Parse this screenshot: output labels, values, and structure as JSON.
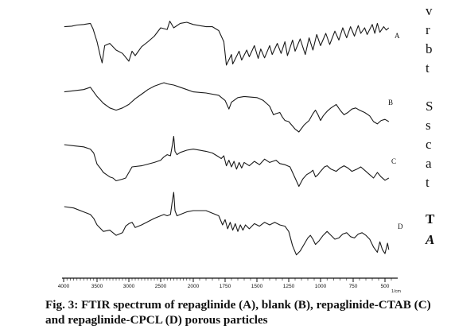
{
  "chart_data": {
    "type": "line",
    "title": "",
    "xlabel": "1/cm",
    "ylabel": "",
    "xlim": [
      4000,
      450
    ],
    "x_ticks": [
      4000,
      3500,
      3000,
      2500,
      2000,
      1750,
      1500,
      1250,
      1000,
      750,
      500
    ],
    "grid": false,
    "legend": "none",
    "series": [
      {
        "name": "A",
        "points": [
          [
            3990,
            0.28
          ],
          [
            3880,
            0.27
          ],
          [
            3800,
            0.25
          ],
          [
            3700,
            0.24
          ],
          [
            3600,
            0.22
          ],
          [
            3560,
            0.32
          ],
          [
            3500,
            0.55
          ],
          [
            3450,
            0.8
          ],
          [
            3420,
            0.93
          ],
          [
            3380,
            0.62
          ],
          [
            3300,
            0.58
          ],
          [
            3200,
            0.7
          ],
          [
            3100,
            0.76
          ],
          [
            3000,
            0.9
          ],
          [
            2950,
            0.72
          ],
          [
            2900,
            0.8
          ],
          [
            2800,
            0.64
          ],
          [
            2700,
            0.55
          ],
          [
            2600,
            0.45
          ],
          [
            2500,
            0.3
          ],
          [
            2400,
            0.33
          ],
          [
            2360,
            0.18
          ],
          [
            2300,
            0.3
          ],
          [
            2200,
            0.22
          ],
          [
            2100,
            0.2
          ],
          [
            2000,
            0.24
          ],
          [
            1900,
            0.28
          ],
          [
            1850,
            0.28
          ],
          [
            1800,
            0.35
          ],
          [
            1760,
            0.55
          ],
          [
            1740,
            0.97
          ],
          [
            1700,
            0.78
          ],
          [
            1690,
            0.95
          ],
          [
            1640,
            0.72
          ],
          [
            1620,
            0.88
          ],
          [
            1580,
            0.7
          ],
          [
            1560,
            0.82
          ],
          [
            1520,
            0.62
          ],
          [
            1490,
            0.85
          ],
          [
            1470,
            0.68
          ],
          [
            1440,
            0.84
          ],
          [
            1400,
            0.62
          ],
          [
            1380,
            0.78
          ],
          [
            1340,
            0.58
          ],
          [
            1310,
            0.76
          ],
          [
            1280,
            0.55
          ],
          [
            1260,
            0.8
          ],
          [
            1220,
            0.52
          ],
          [
            1200,
            0.72
          ],
          [
            1160,
            0.5
          ],
          [
            1120,
            0.78
          ],
          [
            1090,
            0.48
          ],
          [
            1060,
            0.7
          ],
          [
            1030,
            0.42
          ],
          [
            1000,
            0.62
          ],
          [
            960,
            0.4
          ],
          [
            930,
            0.6
          ],
          [
            890,
            0.36
          ],
          [
            860,
            0.52
          ],
          [
            830,
            0.3
          ],
          [
            800,
            0.48
          ],
          [
            770,
            0.28
          ],
          [
            740,
            0.45
          ],
          [
            710,
            0.26
          ],
          [
            690,
            0.4
          ],
          [
            660,
            0.3
          ],
          [
            640,
            0.42
          ],
          [
            600,
            0.24
          ],
          [
            580,
            0.4
          ],
          [
            560,
            0.22
          ],
          [
            540,
            0.38
          ],
          [
            510,
            0.28
          ],
          [
            490,
            0.34
          ],
          [
            470,
            0.3
          ]
        ]
      },
      {
        "name": "B",
        "points": [
          [
            3990,
            0.3
          ],
          [
            3850,
            0.28
          ],
          [
            3700,
            0.26
          ],
          [
            3600,
            0.22
          ],
          [
            3500,
            0.38
          ],
          [
            3400,
            0.5
          ],
          [
            3300,
            0.58
          ],
          [
            3200,
            0.62
          ],
          [
            3100,
            0.58
          ],
          [
            3000,
            0.52
          ],
          [
            2900,
            0.42
          ],
          [
            2800,
            0.34
          ],
          [
            2700,
            0.26
          ],
          [
            2600,
            0.2
          ],
          [
            2500,
            0.16
          ],
          [
            2450,
            0.14
          ],
          [
            2400,
            0.16
          ],
          [
            2300,
            0.18
          ],
          [
            2200,
            0.22
          ],
          [
            2100,
            0.26
          ],
          [
            2000,
            0.3
          ],
          [
            1900,
            0.32
          ],
          [
            1800,
            0.36
          ],
          [
            1750,
            0.45
          ],
          [
            1720,
            0.6
          ],
          [
            1700,
            0.48
          ],
          [
            1650,
            0.4
          ],
          [
            1600,
            0.38
          ],
          [
            1500,
            0.4
          ],
          [
            1450,
            0.45
          ],
          [
            1400,
            0.55
          ],
          [
            1370,
            0.7
          ],
          [
            1350,
            0.68
          ],
          [
            1320,
            0.66
          ],
          [
            1300,
            0.74
          ],
          [
            1280,
            0.8
          ],
          [
            1250,
            0.82
          ],
          [
            1200,
            0.95
          ],
          [
            1170,
            1.0
          ],
          [
            1130,
            0.88
          ],
          [
            1090,
            0.8
          ],
          [
            1060,
            0.68
          ],
          [
            1040,
            0.62
          ],
          [
            1020,
            0.7
          ],
          [
            1000,
            0.8
          ],
          [
            980,
            0.72
          ],
          [
            950,
            0.64
          ],
          [
            920,
            0.58
          ],
          [
            880,
            0.52
          ],
          [
            850,
            0.62
          ],
          [
            820,
            0.7
          ],
          [
            790,
            0.66
          ],
          [
            760,
            0.6
          ],
          [
            730,
            0.58
          ],
          [
            700,
            0.62
          ],
          [
            660,
            0.66
          ],
          [
            620,
            0.72
          ],
          [
            590,
            0.82
          ],
          [
            560,
            0.86
          ],
          [
            530,
            0.8
          ],
          [
            500,
            0.78
          ],
          [
            470,
            0.82
          ]
        ]
      },
      {
        "name": "C",
        "points": [
          [
            3990,
            0.2
          ],
          [
            3850,
            0.22
          ],
          [
            3700,
            0.24
          ],
          [
            3600,
            0.28
          ],
          [
            3550,
            0.35
          ],
          [
            3500,
            0.55
          ],
          [
            3450,
            0.62
          ],
          [
            3400,
            0.7
          ],
          [
            3350,
            0.74
          ],
          [
            3300,
            0.78
          ],
          [
            3250,
            0.8
          ],
          [
            3200,
            0.85
          ],
          [
            3100,
            0.82
          ],
          [
            3050,
            0.8
          ],
          [
            3000,
            0.7
          ],
          [
            2950,
            0.6
          ],
          [
            2800,
            0.58
          ],
          [
            2700,
            0.55
          ],
          [
            2600,
            0.52
          ],
          [
            2500,
            0.48
          ],
          [
            2450,
            0.42
          ],
          [
            2400,
            0.38
          ],
          [
            2350,
            0.4
          ],
          [
            2320,
            0.2
          ],
          [
            2300,
            0.05
          ],
          [
            2280,
            0.32
          ],
          [
            2250,
            0.38
          ],
          [
            2200,
            0.34
          ],
          [
            2100,
            0.3
          ],
          [
            2000,
            0.28
          ],
          [
            1900,
            0.32
          ],
          [
            1850,
            0.35
          ],
          [
            1800,
            0.42
          ],
          [
            1780,
            0.45
          ],
          [
            1760,
            0.4
          ],
          [
            1740,
            0.58
          ],
          [
            1720,
            0.48
          ],
          [
            1700,
            0.6
          ],
          [
            1680,
            0.5
          ],
          [
            1660,
            0.64
          ],
          [
            1640,
            0.52
          ],
          [
            1620,
            0.62
          ],
          [
            1600,
            0.52
          ],
          [
            1560,
            0.58
          ],
          [
            1520,
            0.5
          ],
          [
            1480,
            0.56
          ],
          [
            1440,
            0.46
          ],
          [
            1400,
            0.52
          ],
          [
            1350,
            0.48
          ],
          [
            1320,
            0.54
          ],
          [
            1280,
            0.56
          ],
          [
            1240,
            0.6
          ],
          [
            1200,
            0.8
          ],
          [
            1170,
            0.95
          ],
          [
            1140,
            0.82
          ],
          [
            1110,
            0.74
          ],
          [
            1080,
            0.7
          ],
          [
            1060,
            0.66
          ],
          [
            1040,
            0.78
          ],
          [
            1020,
            0.74
          ],
          [
            1000,
            0.68
          ],
          [
            970,
            0.6
          ],
          [
            950,
            0.58
          ],
          [
            920,
            0.64
          ],
          [
            880,
            0.68
          ],
          [
            850,
            0.62
          ],
          [
            820,
            0.58
          ],
          [
            790,
            0.62
          ],
          [
            760,
            0.68
          ],
          [
            720,
            0.64
          ],
          [
            690,
            0.6
          ],
          [
            660,
            0.66
          ],
          [
            620,
            0.74
          ],
          [
            590,
            0.8
          ],
          [
            560,
            0.7
          ],
          [
            530,
            0.78
          ],
          [
            500,
            0.84
          ],
          [
            470,
            0.8
          ]
        ]
      },
      {
        "name": "D",
        "points": [
          [
            3990,
            0.22
          ],
          [
            3850,
            0.24
          ],
          [
            3700,
            0.3
          ],
          [
            3600,
            0.34
          ],
          [
            3550,
            0.4
          ],
          [
            3500,
            0.5
          ],
          [
            3450,
            0.55
          ],
          [
            3400,
            0.6
          ],
          [
            3300,
            0.58
          ],
          [
            3250,
            0.62
          ],
          [
            3200,
            0.66
          ],
          [
            3100,
            0.62
          ],
          [
            3050,
            0.52
          ],
          [
            3000,
            0.48
          ],
          [
            2950,
            0.46
          ],
          [
            2900,
            0.54
          ],
          [
            2800,
            0.5
          ],
          [
            2700,
            0.45
          ],
          [
            2600,
            0.4
          ],
          [
            2500,
            0.36
          ],
          [
            2450,
            0.34
          ],
          [
            2400,
            0.36
          ],
          [
            2350,
            0.34
          ],
          [
            2320,
            0.12
          ],
          [
            2300,
            0.0
          ],
          [
            2280,
            0.28
          ],
          [
            2250,
            0.36
          ],
          [
            2200,
            0.34
          ],
          [
            2100,
            0.3
          ],
          [
            2000,
            0.28
          ],
          [
            1900,
            0.28
          ],
          [
            1850,
            0.32
          ],
          [
            1800,
            0.36
          ],
          [
            1770,
            0.5
          ],
          [
            1750,
            0.42
          ],
          [
            1730,
            0.56
          ],
          [
            1710,
            0.46
          ],
          [
            1690,
            0.58
          ],
          [
            1670,
            0.48
          ],
          [
            1650,
            0.6
          ],
          [
            1630,
            0.5
          ],
          [
            1610,
            0.58
          ],
          [
            1590,
            0.5
          ],
          [
            1560,
            0.56
          ],
          [
            1520,
            0.48
          ],
          [
            1480,
            0.52
          ],
          [
            1440,
            0.46
          ],
          [
            1400,
            0.5
          ],
          [
            1360,
            0.46
          ],
          [
            1320,
            0.5
          ],
          [
            1280,
            0.52
          ],
          [
            1250,
            0.6
          ],
          [
            1220,
            0.82
          ],
          [
            1190,
            0.96
          ],
          [
            1160,
            0.9
          ],
          [
            1130,
            0.8
          ],
          [
            1100,
            0.7
          ],
          [
            1080,
            0.66
          ],
          [
            1060,
            0.72
          ],
          [
            1040,
            0.8
          ],
          [
            1010,
            0.74
          ],
          [
            980,
            0.66
          ],
          [
            950,
            0.6
          ],
          [
            920,
            0.66
          ],
          [
            890,
            0.72
          ],
          [
            860,
            0.7
          ],
          [
            830,
            0.64
          ],
          [
            800,
            0.62
          ],
          [
            770,
            0.68
          ],
          [
            740,
            0.7
          ],
          [
            710,
            0.64
          ],
          [
            680,
            0.62
          ],
          [
            650,
            0.66
          ],
          [
            620,
            0.72
          ],
          [
            590,
            0.84
          ],
          [
            560,
            0.92
          ],
          [
            540,
            0.76
          ],
          [
            520,
            0.88
          ],
          [
            500,
            0.94
          ],
          [
            480,
            0.78
          ],
          [
            470,
            0.88
          ]
        ]
      }
    ]
  },
  "figure": {
    "caption": "Fig. 3: FTIR spectrum of repaglinide (A), blank (B), repaglinide-CTAB (C) and repaglinide-CPCL (D) porous particles"
  },
  "side_text": {
    "fragments": [
      "v",
      "r",
      "b",
      "t",
      "S",
      "s",
      "c",
      "a",
      "t",
      "T",
      "A"
    ]
  }
}
